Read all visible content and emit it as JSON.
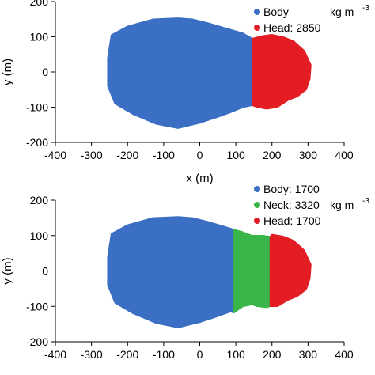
{
  "chart_data": [
    {
      "type": "scatter",
      "xlabel": "x (m)",
      "ylabel": "y (m)",
      "xlim": [
        -400,
        400
      ],
      "ylim": [
        -200,
        200
      ],
      "x_ticks": [
        -400,
        -300,
        -200,
        -100,
        0,
        100,
        200,
        300,
        400
      ],
      "y_ticks": [
        -200,
        -100,
        0,
        100,
        200
      ],
      "density_unit": "kg m",
      "density_unit_exponent": "-3",
      "legend_position": "top-right",
      "series": [
        {
          "name": "Body",
          "label": "Body",
          "color": "#3a6fc4",
          "outline": [
            [
              -245,
              105
            ],
            [
              -200,
              130
            ],
            [
              -130,
              150
            ],
            [
              -60,
              153
            ],
            [
              -20,
              150
            ],
            [
              20,
              140
            ],
            [
              70,
              125
            ],
            [
              120,
              110
            ],
            [
              145,
              95
            ],
            [
              145,
              -95
            ],
            [
              120,
              -100
            ],
            [
              85,
              -115
            ],
            [
              45,
              -130
            ],
            [
              0,
              -145
            ],
            [
              -60,
              -160
            ],
            [
              -120,
              -148
            ],
            [
              -185,
              -120
            ],
            [
              -235,
              -90
            ],
            [
              -255,
              -40
            ],
            [
              -255,
              40
            ]
          ]
        },
        {
          "name": "Head",
          "label": "Head: 2850",
          "color": "#e41d25",
          "outline": [
            [
              145,
              95
            ],
            [
              175,
              103
            ],
            [
              200,
              106
            ],
            [
              230,
              100
            ],
            [
              260,
              88
            ],
            [
              290,
              60
            ],
            [
              308,
              20
            ],
            [
              305,
              -20
            ],
            [
              295,
              -50
            ],
            [
              270,
              -70
            ],
            [
              245,
              -80
            ],
            [
              215,
              -100
            ],
            [
              185,
              -105
            ],
            [
              160,
              -100
            ],
            [
              145,
              -95
            ]
          ]
        }
      ]
    },
    {
      "type": "scatter",
      "xlabel": "",
      "ylabel": "y (m)",
      "xlim": [
        -400,
        400
      ],
      "ylim": [
        -200,
        200
      ],
      "x_ticks": [
        -400,
        -300,
        -200,
        -100,
        0,
        100,
        200,
        300,
        400
      ],
      "y_ticks": [
        -200,
        -100,
        0,
        100,
        200
      ],
      "density_unit": "kg m",
      "density_unit_exponent": "-3",
      "legend_position": "top-right",
      "series": [
        {
          "name": "Body",
          "label": "Body: 1700",
          "color": "#3a6fc4",
          "outline": [
            [
              -245,
              105
            ],
            [
              -200,
              130
            ],
            [
              -130,
              150
            ],
            [
              -60,
              153
            ],
            [
              -20,
              150
            ],
            [
              20,
              140
            ],
            [
              70,
              125
            ],
            [
              95,
              117
            ],
            [
              95,
              -118
            ],
            [
              85,
              -115
            ],
            [
              45,
              -130
            ],
            [
              0,
              -145
            ],
            [
              -60,
              -160
            ],
            [
              -120,
              -148
            ],
            [
              -185,
              -120
            ],
            [
              -235,
              -90
            ],
            [
              -255,
              -40
            ],
            [
              -255,
              40
            ]
          ]
        },
        {
          "name": "Neck",
          "label": "Neck: 3320",
          "color": "#3ab54a",
          "outline": [
            [
              95,
              117
            ],
            [
              120,
              110
            ],
            [
              145,
              100
            ],
            [
              175,
              100
            ],
            [
              195,
              97
            ],
            [
              195,
              -100
            ],
            [
              185,
              -103
            ],
            [
              160,
              -100
            ],
            [
              145,
              -95
            ],
            [
              120,
              -100
            ],
            [
              95,
              -118
            ]
          ]
        },
        {
          "name": "Head",
          "label": "Head: 1700",
          "color": "#e41d25",
          "outline": [
            [
              195,
              97
            ],
            [
              200,
              103
            ],
            [
              230,
              98
            ],
            [
              260,
              86
            ],
            [
              290,
              58
            ],
            [
              308,
              18
            ],
            [
              305,
              -22
            ],
            [
              295,
              -52
            ],
            [
              270,
              -72
            ],
            [
              245,
              -82
            ],
            [
              215,
              -100
            ],
            [
              195,
              -100
            ]
          ]
        }
      ]
    }
  ]
}
